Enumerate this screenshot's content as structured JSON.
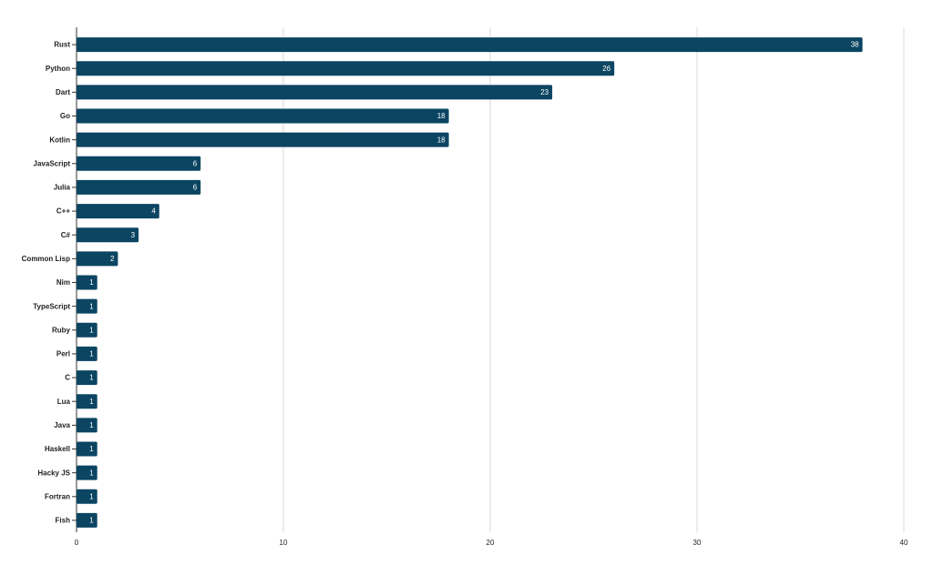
{
  "chart_data": {
    "type": "bar",
    "categories": [
      "Rust",
      "Python",
      "Dart",
      "Go",
      "Kotlin",
      "JavaScript",
      "Julia",
      "C++",
      "C#",
      "Common Lisp",
      "Nim",
      "TypeScript",
      "Ruby",
      "Perl",
      "C",
      "Lua",
      "Java",
      "Haskell",
      "Hacky JS",
      "Fortran",
      "Fish"
    ],
    "values": [
      38,
      26,
      23,
      18,
      18,
      6,
      6,
      4,
      3,
      2,
      1,
      1,
      1,
      1,
      1,
      1,
      1,
      1,
      1,
      1,
      1
    ],
    "color": "#0b4562",
    "xlim": [
      0,
      40
    ],
    "xticks": [
      0,
      10,
      20,
      30,
      40
    ],
    "grid": true
  }
}
